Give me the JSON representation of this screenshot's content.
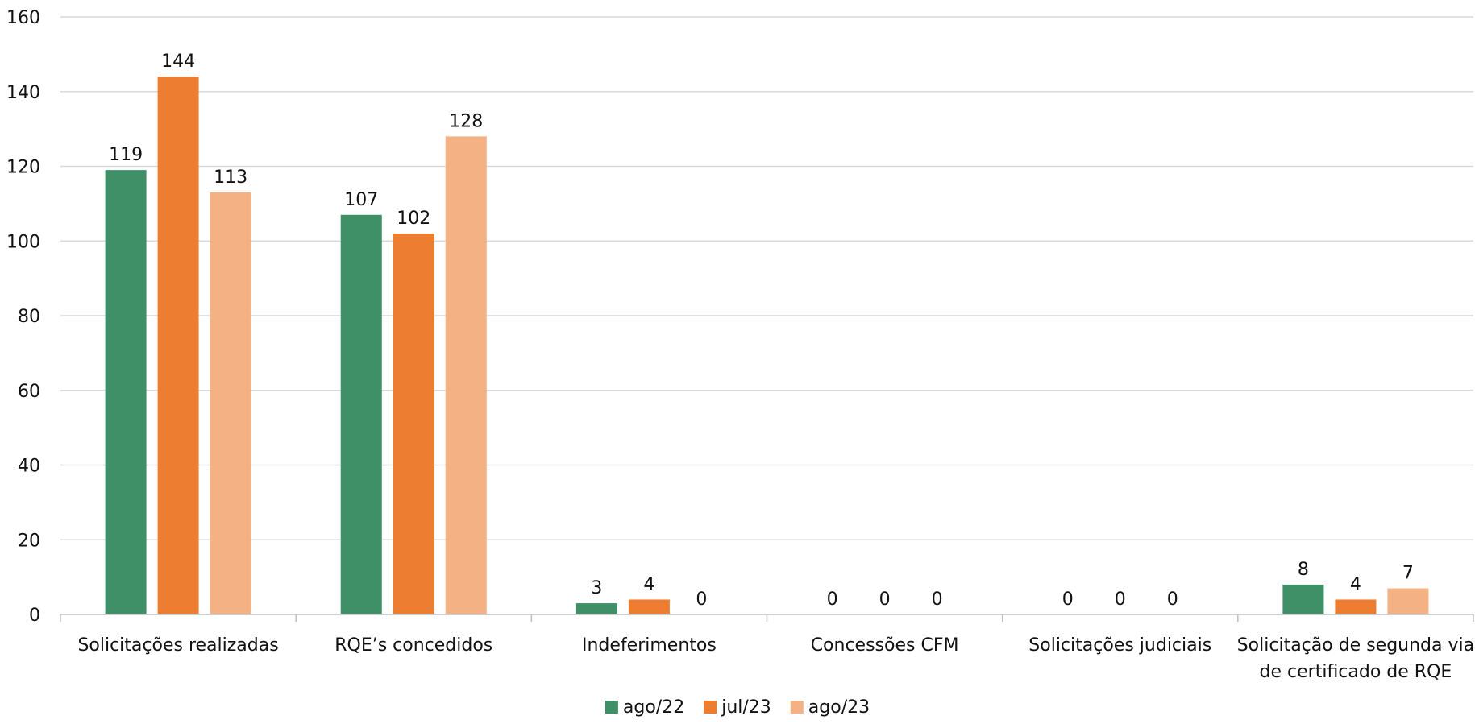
{
  "chart_data": {
    "type": "bar",
    "categories": [
      [
        "Solicitações realizadas"
      ],
      [
        "RQE’s concedidos"
      ],
      [
        "Indeferimentos"
      ],
      [
        "Concessões CFM"
      ],
      [
        "Solicitações judiciais"
      ],
      [
        "Solicitação de segunda via",
        "de certificado de RQE"
      ]
    ],
    "series": [
      {
        "name": "ago/22",
        "color": "#3f8f67",
        "values": [
          119,
          107,
          3,
          0,
          0,
          8
        ]
      },
      {
        "name": "jul/23",
        "color": "#ed7d31",
        "values": [
          144,
          102,
          4,
          0,
          0,
          4
        ]
      },
      {
        "name": "ago/23",
        "color": "#f4b183",
        "values": [
          113,
          128,
          0,
          0,
          0,
          7
        ]
      }
    ],
    "yticks": [
      "0",
      "20",
      "40",
      "60",
      "80",
      "100",
      "120",
      "140",
      "160"
    ],
    "ylim": [
      0,
      160
    ],
    "grid": true,
    "legend_position": "bottom-center",
    "data_labels": true
  }
}
